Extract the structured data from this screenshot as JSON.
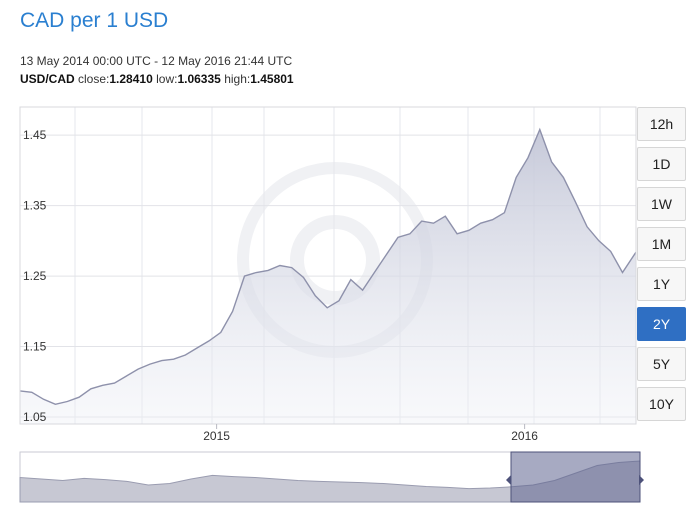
{
  "header": {
    "title": "CAD per 1 USD",
    "date_range": "13 May 2014 00:00 UTC - 12 May 2016 21:44 UTC",
    "pair": "USD/CAD",
    "close_label": "close:",
    "close_value": "1.28410",
    "low_label": "low:",
    "low_value": "1.06335",
    "high_label": "high:",
    "high_value": "1.45801"
  },
  "periods": [
    "12h",
    "1D",
    "1W",
    "1M",
    "1Y",
    "2Y",
    "5Y",
    "10Y"
  ],
  "active_period": "2Y",
  "colors": {
    "title": "#2a7fd0",
    "line": "#8e91ab",
    "area_top": "#c3c6d7",
    "navigator_selected": "#5f6590",
    "active_button": "#2f6fc3"
  },
  "chart_data": {
    "type": "area",
    "x_range": [
      "2014-05-13",
      "2016-05-12"
    ],
    "ylim": [
      1.04,
      1.49
    ],
    "yticks": [
      1.05,
      1.15,
      1.25,
      1.35,
      1.45
    ],
    "ytick_labels": [
      "1.05",
      "1.15",
      "1.25",
      "1.35",
      "1.45"
    ],
    "xtick_labels": [
      {
        "date": "2015-01-01",
        "label": "2015"
      },
      {
        "date": "2016-01-01",
        "label": "2016"
      }
    ],
    "grid": true,
    "series": [
      {
        "x": [
          "2014-05-13",
          "2014-05-27",
          "2014-06-10",
          "2014-06-24",
          "2014-07-08",
          "2014-07-22",
          "2014-08-05",
          "2014-08-19",
          "2014-09-02",
          "2014-09-16",
          "2014-09-30",
          "2014-10-14",
          "2014-10-28",
          "2014-11-11",
          "2014-11-25",
          "2014-12-09",
          "2014-12-23",
          "2015-01-06",
          "2015-01-20",
          "2015-02-03",
          "2015-02-17",
          "2015-03-03",
          "2015-03-17",
          "2015-03-31",
          "2015-04-14",
          "2015-04-28",
          "2015-05-12",
          "2015-05-26",
          "2015-06-09",
          "2015-06-23",
          "2015-07-07",
          "2015-07-21",
          "2015-08-04",
          "2015-08-18",
          "2015-09-01",
          "2015-09-15",
          "2015-09-29",
          "2015-10-13",
          "2015-10-27",
          "2015-11-10",
          "2015-11-24",
          "2015-12-08",
          "2015-12-22",
          "2016-01-05",
          "2016-01-19",
          "2016-02-02",
          "2016-02-16",
          "2016-03-01",
          "2016-03-15",
          "2016-03-29",
          "2016-04-12",
          "2016-04-26",
          "2016-05-12"
        ],
        "y": [
          1.087,
          1.085,
          1.075,
          1.068,
          1.072,
          1.078,
          1.09,
          1.095,
          1.098,
          1.108,
          1.118,
          1.125,
          1.13,
          1.132,
          1.138,
          1.148,
          1.158,
          1.17,
          1.2,
          1.25,
          1.255,
          1.258,
          1.265,
          1.262,
          1.248,
          1.222,
          1.205,
          1.215,
          1.245,
          1.23,
          1.255,
          1.28,
          1.305,
          1.31,
          1.328,
          1.325,
          1.335,
          1.31,
          1.315,
          1.325,
          1.33,
          1.34,
          1.39,
          1.418,
          1.458,
          1.412,
          1.39,
          1.356,
          1.32,
          1.3,
          1.285,
          1.255,
          1.284
        ]
      }
    ]
  }
}
